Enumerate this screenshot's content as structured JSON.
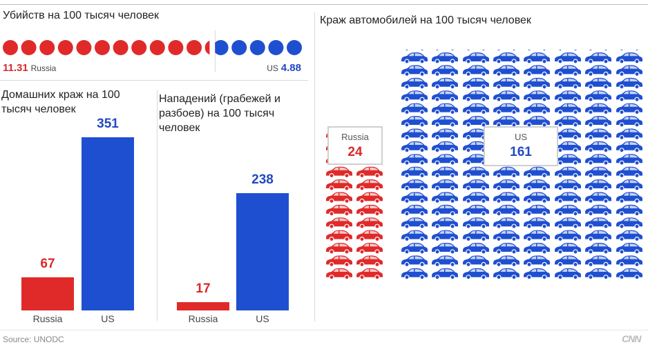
{
  "colors": {
    "russia": "#e02a2a",
    "us": "#1f4fd1"
  },
  "chart_data": [
    {
      "type": "bar",
      "title": "Убийств на 100 тысяч человек",
      "categories": [
        "Russia",
        "US"
      ],
      "values": [
        11.31,
        4.88
      ],
      "labels": {
        "russia_value": "11.31",
        "russia_name": "Russia",
        "us_name": "US",
        "us_value": "4.88"
      }
    },
    {
      "type": "bar",
      "title": "Домашних краж на 100 тысяч человек",
      "categories": [
        "Russia",
        "US"
      ],
      "values": [
        67,
        351
      ],
      "ylim": [
        0,
        351
      ]
    },
    {
      "type": "bar",
      "title": "Нападений (грабежей и разбоев) на 100 тысяч человек",
      "categories": [
        "Russia",
        "US"
      ],
      "values": [
        17,
        238
      ],
      "ylim": [
        0,
        351
      ]
    },
    {
      "type": "bar",
      "title": "Краж автомобилей на 100 тысяч человек",
      "categories": [
        "Russia",
        "US"
      ],
      "values": [
        24,
        161
      ]
    }
  ],
  "footer": {
    "source": "Source: UNODC",
    "logo": "CNN"
  }
}
